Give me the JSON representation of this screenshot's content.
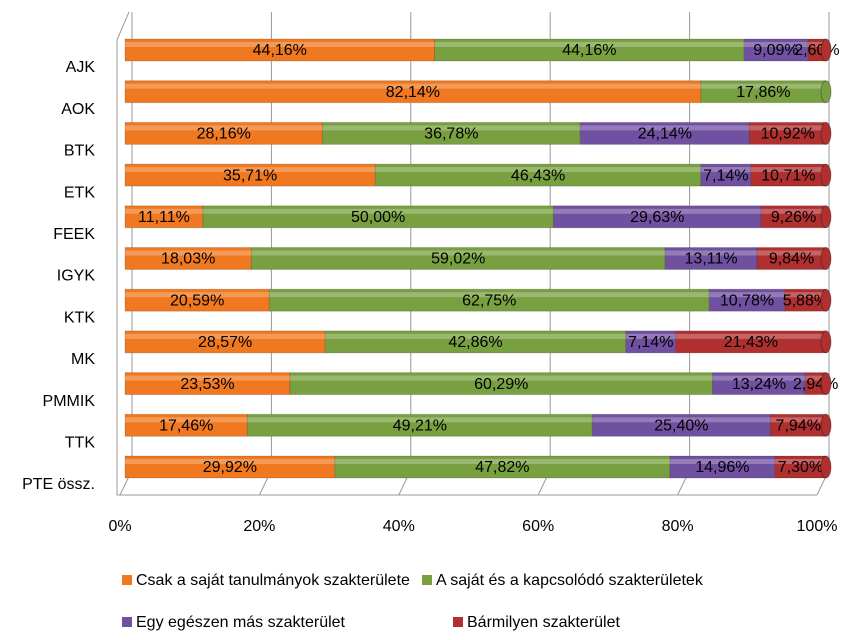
{
  "chart_data": {
    "type": "bar",
    "orientation": "horizontal",
    "stacked": true,
    "categories": [
      "AJK",
      "AOK",
      "BTK",
      "ETK",
      "FEEK",
      "IGYK",
      "KTK",
      "MK",
      "PMMIK",
      "TTK",
      "PTE össz."
    ],
    "series": [
      {
        "name": "Csak a saját tanulmányok szakterülete",
        "color": "#f07820",
        "values": [
          44.16,
          82.14,
          28.16,
          35.71,
          11.11,
          18.03,
          20.59,
          28.57,
          23.53,
          17.46,
          29.92
        ],
        "value_labels": [
          "44,16%",
          "82,14%",
          "28,16%",
          "35,71%",
          "11,11%",
          "18,03%",
          "20,59%",
          "28,57%",
          "23,53%",
          "17,46%",
          "29,92%"
        ]
      },
      {
        "name": "A saját és a kapcsolódó szakterületek",
        "color": "#78a040",
        "values": [
          44.16,
          17.86,
          36.78,
          46.43,
          50.0,
          59.02,
          62.75,
          42.86,
          60.29,
          49.21,
          47.82
        ],
        "value_labels": [
          "44,16%",
          "17,86%",
          "36,78%",
          "46,43%",
          "50,00%",
          "59,02%",
          "62,75%",
          "42,86%",
          "60,29%",
          "49,21%",
          "47,82%"
        ]
      },
      {
        "name": "Egy egészen más szakterület",
        "color": "#7050a0",
        "values": [
          9.09,
          0,
          24.14,
          7.14,
          29.63,
          13.11,
          10.78,
          7.14,
          13.24,
          25.4,
          14.96
        ],
        "value_labels": [
          "9,09%",
          null,
          "24,14%",
          "7,14%",
          "29,63%",
          "13,11%",
          "10,78%",
          "7,14%",
          "13,24%",
          "25,40%",
          "14,96%"
        ]
      },
      {
        "name": "Bármilyen szakterület",
        "color": "#b03030",
        "values": [
          2.6,
          0,
          10.92,
          10.71,
          9.26,
          9.84,
          5.88,
          21.43,
          2.94,
          7.94,
          7.3
        ],
        "value_labels": [
          "2,60%",
          null,
          "10,92%",
          "10,71%",
          "9,26%",
          "9,84%",
          "5,88%",
          "21,43%",
          "2,94%",
          "7,94%",
          "7,30%"
        ]
      }
    ],
    "xlim": [
      0,
      100
    ],
    "xticks": [
      {
        "value": 0,
        "label": "0%"
      },
      {
        "value": 20,
        "label": "20%"
      },
      {
        "value": 40,
        "label": "40%"
      },
      {
        "value": 60,
        "label": "60%"
      },
      {
        "value": 80,
        "label": "80%"
      },
      {
        "value": 100,
        "label": "100%"
      }
    ],
    "grid": true,
    "legend": "bottom"
  }
}
